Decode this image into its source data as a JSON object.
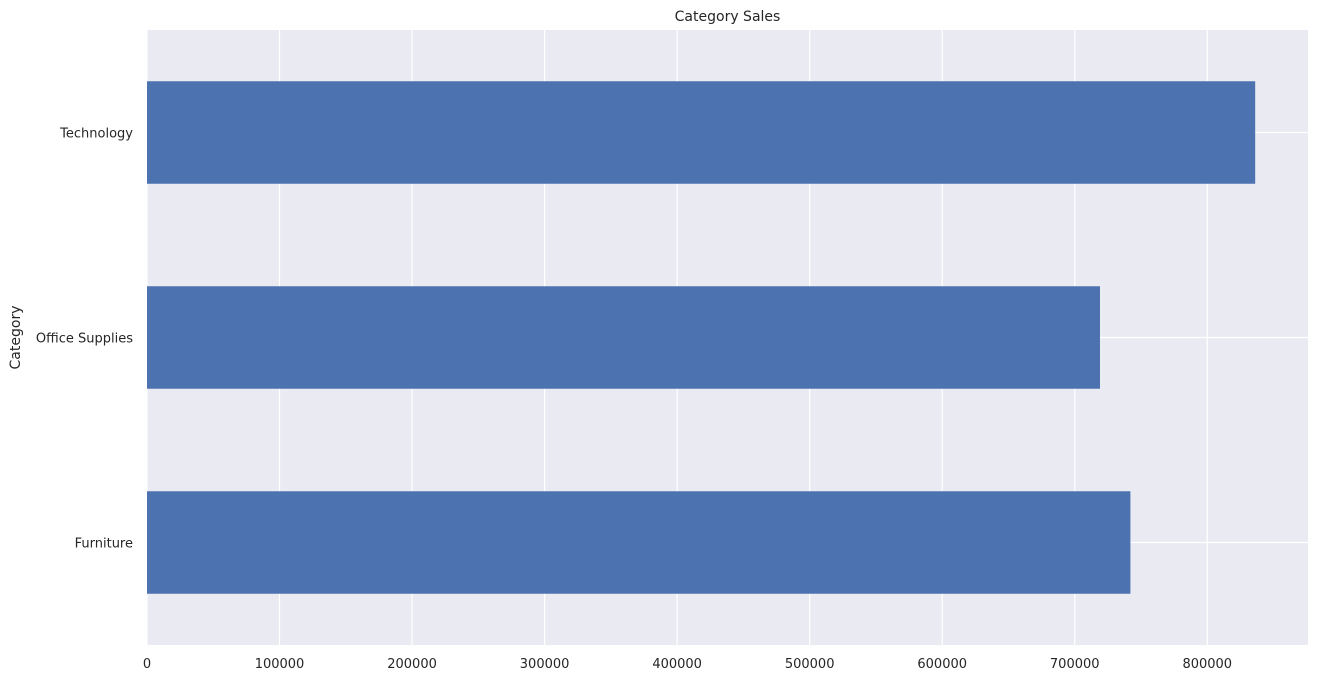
{
  "chart_data": {
    "type": "bar",
    "orientation": "horizontal",
    "title": "Category Sales",
    "xlabel": "",
    "ylabel": "Category",
    "categories": [
      "Furniture",
      "Office Supplies",
      "Technology"
    ],
    "values": [
      741999,
      719047,
      836154
    ],
    "xlim": [
      0,
      876000
    ],
    "xticks": [
      0,
      100000,
      200000,
      300000,
      400000,
      500000,
      600000,
      700000,
      800000
    ],
    "xtick_labels": [
      "0",
      "100000",
      "200000",
      "300000",
      "400000",
      "500000",
      "600000",
      "700000",
      "800000"
    ],
    "grid": true,
    "legend": "none",
    "colors": {
      "bar": "#4c72b0",
      "plot_background": "#eaeaf2",
      "grid": "#ffffff",
      "text": "#262626"
    }
  }
}
